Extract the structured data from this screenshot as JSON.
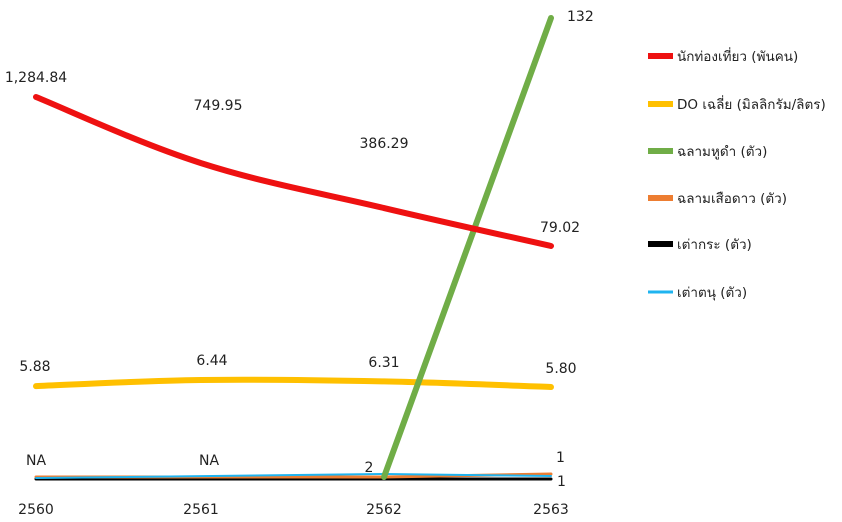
{
  "chart_data": {
    "type": "line",
    "categories": [
      "2560",
      "2561",
      "2562",
      "2563"
    ],
    "grid": false,
    "legend_position": "right",
    "series": [
      {
        "name": "นักท่องเที่ยว (พันคน)",
        "color": "#ee1111",
        "values": [
          1284.84,
          749.95,
          386.29,
          79.02
        ],
        "labels": [
          "1,284.84",
          "749.95",
          "386.29",
          "79.02"
        ]
      },
      {
        "name": "DO เฉลี่ย (มิลลิกรัม/ลิตร)",
        "color": "#ffc000",
        "values": [
          5.88,
          6.44,
          6.31,
          5.8
        ],
        "labels": [
          "5.88",
          "6.44",
          "6.31",
          "5.80"
        ]
      },
      {
        "name": "ฉลามหูดำ (ตัว)",
        "color": "#70ad47",
        "values": [
          null,
          null,
          0,
          132
        ],
        "labels": [
          "",
          "",
          "",
          "132"
        ]
      },
      {
        "name": "ฉลามเสือดาว (ตัว)",
        "color": "#ed7d31",
        "values": [
          null,
          null,
          0,
          1
        ],
        "labels": [
          "NA",
          "NA",
          "",
          "1"
        ]
      },
      {
        "name": "เต่ากระ (ตัว)",
        "color": "#000000",
        "values": [
          null,
          null,
          0,
          0
        ],
        "labels": [
          "",
          "",
          "",
          ""
        ]
      },
      {
        "name": "เต่าตนุ (ตัว)",
        "color": "#1fb4f0",
        "values": [
          null,
          null,
          2,
          1
        ],
        "labels": [
          "",
          "",
          "2",
          "1"
        ]
      }
    ]
  }
}
